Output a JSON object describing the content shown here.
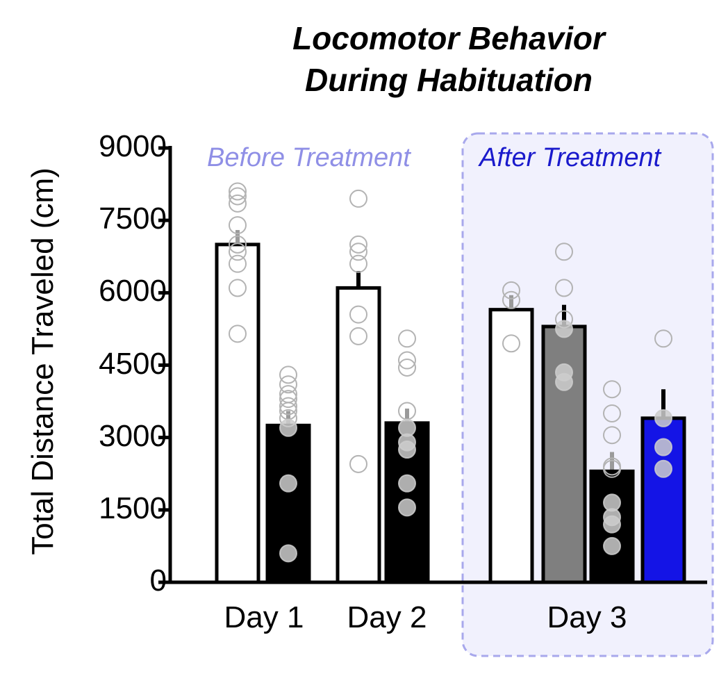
{
  "chart_data": {
    "type": "bar",
    "title_lines": [
      "Locomotor Behavior",
      "During Habituation"
    ],
    "ylabel": "Total Distance Traveled (cm)",
    "xlabel": "",
    "ylim": [
      0,
      9000
    ],
    "yticks": [
      "0",
      "1500",
      "3000",
      "4500",
      "6000",
      "7500",
      "9000"
    ],
    "xticks": [
      {
        "label": "Day 1",
        "group": "Day 1"
      },
      {
        "label": "Day 2",
        "group": "Day 2"
      },
      {
        "label": "Day 3",
        "group": "Day 3"
      }
    ],
    "annotations": {
      "before": {
        "text": "Before Treatment",
        "color": "#8f8fe6"
      },
      "after": {
        "text": "After Treatment",
        "color": "#1a1acc"
      }
    },
    "after_region_color": "#f1f1fd",
    "after_region_border": "#a8a8ec",
    "bars": [
      {
        "name": "day1-white",
        "group": "Day 1",
        "fill": "#ffffff",
        "value": 7000,
        "error": 300,
        "err_color": "#9a9a9a",
        "points": [
          8100,
          8000,
          7850,
          7400,
          7000,
          6850,
          6600,
          6100,
          5150
        ]
      },
      {
        "name": "day1-black",
        "group": "Day 1",
        "fill": "#000000",
        "value": 3250,
        "error": 300,
        "err_color": "#9a9a9a",
        "points": [
          4300,
          4100,
          3900,
          3800,
          3650,
          3550,
          3400,
          3200,
          2050,
          600
        ]
      },
      {
        "name": "day2-white",
        "group": "Day 2",
        "fill": "#ffffff",
        "value": 6100,
        "error": 350,
        "err_color": "#000000",
        "points": [
          7950,
          7000,
          6850,
          6600,
          5550,
          5100,
          2450
        ]
      },
      {
        "name": "day2-black",
        "group": "Day 2",
        "fill": "#000000",
        "value": 3300,
        "error": 300,
        "err_color": "#9a9a9a",
        "points": [
          5050,
          4600,
          4450,
          3550,
          3200,
          2900,
          2750,
          2050,
          1550
        ]
      },
      {
        "name": "day3-white",
        "group": "Day 3",
        "fill": "#ffffff",
        "value": 5650,
        "error": 300,
        "err_color": "#9a9a9a",
        "points": [
          6050,
          5850,
          4950
        ]
      },
      {
        "name": "day3-gray",
        "group": "Day 3",
        "fill": "#7f7f7f",
        "value": 5300,
        "error": 450,
        "err_color": "#000000",
        "points": [
          6850,
          6100,
          5450,
          5250,
          4350,
          4150
        ]
      },
      {
        "name": "day3-black",
        "group": "Day 3",
        "fill": "#000000",
        "value": 2300,
        "error": 400,
        "err_color": "#9a9a9a",
        "points": [
          4000,
          3500,
          3050,
          2400,
          2350,
          1650,
          1350,
          1200,
          750
        ]
      },
      {
        "name": "day3-blue",
        "group": "Day 3",
        "fill": "#1414e6",
        "value": 3400,
        "error": 600,
        "err_color": "#000000",
        "points": [
          5050,
          3400,
          2800,
          2350
        ]
      }
    ]
  }
}
